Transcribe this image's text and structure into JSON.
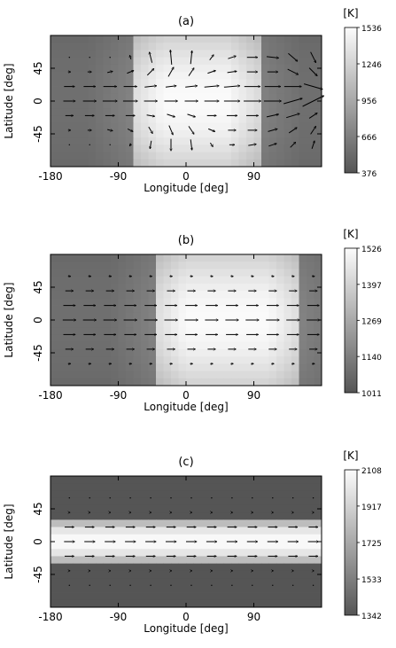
{
  "chart_data": [
    {
      "type": "heatmap",
      "panel_label": "(a)",
      "xlabel": "Longitude [deg]",
      "ylabel": "Latitude [deg]",
      "xlim": [
        -180,
        180
      ],
      "ylim": [
        -90,
        90
      ],
      "x_ticks": [
        -180,
        -90,
        0,
        90
      ],
      "y_ticks": [
        45,
        0,
        -45
      ],
      "colorbar_unit": "[K]",
      "colorbar_ticks": [
        1536,
        1246,
        956,
        666,
        376
      ],
      "colorbar_range": [
        376,
        1536
      ],
      "temperature_field": {
        "day_side_lon": [
          -70,
          95
        ],
        "night_side_lon": [
          [
            -180,
            -70
          ],
          [
            95,
            180
          ]
        ]
      },
      "wind_vectors": {
        "lat": [
          60,
          40,
          20,
          0,
          -20,
          -40,
          -60
        ],
        "lon": [
          -155,
          -128,
          -101,
          -74,
          -47,
          -20,
          7,
          34,
          61,
          88,
          115,
          142,
          169
        ],
        "u": [
          [
            0,
            0,
            0,
            -0.05,
            -0.1,
            -0.05,
            0.05,
            0.15,
            0.3,
            0.4,
            0.45,
            0.35,
            0.2
          ],
          [
            0.1,
            0.15,
            0.2,
            0.25,
            0.25,
            0.2,
            0.2,
            0.3,
            0.35,
            0.4,
            0.4,
            0.4,
            0.3
          ],
          [
            0.4,
            0.45,
            0.5,
            0.5,
            0.45,
            0.4,
            0.45,
            0.55,
            0.6,
            0.6,
            0.6,
            0.65,
            0.7
          ],
          [
            0.45,
            0.5,
            0.55,
            0.55,
            0.5,
            0.5,
            0.5,
            0.55,
            0.6,
            0.65,
            0.65,
            0.7,
            0.8
          ],
          [
            0.3,
            0.35,
            0.35,
            0.35,
            0.3,
            0.3,
            0.3,
            0.35,
            0.4,
            0.45,
            0.45,
            0.5,
            0.3
          ],
          [
            0.1,
            0.15,
            0.2,
            0.2,
            0.15,
            0.15,
            0.2,
            0.25,
            0.3,
            0.35,
            0.35,
            0.3,
            0.2
          ],
          [
            0,
            0,
            0,
            -0.05,
            -0.05,
            0,
            0.05,
            0.1,
            0.2,
            0.3,
            0.3,
            0.2,
            0.1
          ]
        ],
        "v": [
          [
            0,
            0,
            0,
            0.15,
            0.4,
            0.55,
            0.5,
            0.2,
            0.1,
            0,
            -0.05,
            -0.3,
            -0.4
          ],
          [
            0,
            0,
            0.05,
            0.1,
            0.25,
            0.35,
            0.3,
            0.1,
            0.05,
            0,
            0,
            -0.2,
            -0.3
          ],
          [
            0,
            0,
            0,
            0,
            0.05,
            0.05,
            0.05,
            0.05,
            0.05,
            0,
            0,
            0,
            -0.2
          ],
          [
            0,
            0,
            0,
            0,
            0,
            0,
            0,
            0,
            0,
            0,
            0,
            0.2,
            0.4
          ],
          [
            0,
            0,
            0,
            0,
            -0.05,
            -0.1,
            -0.1,
            0,
            0,
            0,
            0.1,
            0.15,
            0.2
          ],
          [
            0,
            0,
            -0.05,
            -0.1,
            -0.25,
            -0.35,
            -0.3,
            -0.1,
            0,
            0,
            0.1,
            0.2,
            0.3
          ],
          [
            0,
            0,
            0,
            -0.1,
            -0.3,
            -0.45,
            -0.4,
            -0.15,
            0,
            0.05,
            0.1,
            0.2,
            0.3
          ]
        ]
      }
    },
    {
      "type": "heatmap",
      "panel_label": "(b)",
      "xlabel": "Longitude [deg]",
      "ylabel": "Latitude [deg]",
      "xlim": [
        -180,
        180
      ],
      "ylim": [
        -90,
        90
      ],
      "x_ticks": [
        -180,
        -90,
        0,
        90
      ],
      "y_ticks": [
        45,
        0,
        -45
      ],
      "colorbar_unit": "[K]",
      "colorbar_ticks": [
        1526,
        1397,
        1269,
        1140,
        1011
      ],
      "colorbar_range": [
        1011,
        1526
      ],
      "temperature_field": {
        "day_side_lon": [
          -40,
          150
        ],
        "night_side_lon": [
          [
            -180,
            -40
          ],
          [
            150,
            180
          ]
        ]
      },
      "wind_vectors": {
        "lat": [
          60,
          40,
          20,
          0,
          -20,
          -40,
          -60
        ],
        "lon": [
          -155,
          -128,
          -101,
          -74,
          -47,
          -20,
          7,
          34,
          61,
          88,
          115,
          142,
          169
        ],
        "u": [
          [
            0.1,
            0.1,
            0.1,
            0.1,
            0.1,
            0.1,
            0.1,
            0.1,
            0.1,
            0.1,
            0.1,
            0.1,
            0.1
          ],
          [
            0.3,
            0.3,
            0.3,
            0.3,
            0.3,
            0.3,
            0.3,
            0.3,
            0.3,
            0.3,
            0.3,
            0.3,
            0.3
          ],
          [
            0.45,
            0.45,
            0.45,
            0.45,
            0.45,
            0.45,
            0.45,
            0.45,
            0.45,
            0.45,
            0.45,
            0.45,
            0.45
          ],
          [
            0.5,
            0.5,
            0.5,
            0.5,
            0.5,
            0.5,
            0.5,
            0.5,
            0.5,
            0.5,
            0.5,
            0.5,
            0.5
          ],
          [
            0.45,
            0.45,
            0.45,
            0.45,
            0.45,
            0.45,
            0.45,
            0.45,
            0.45,
            0.45,
            0.45,
            0.45,
            0.45
          ],
          [
            0.3,
            0.3,
            0.3,
            0.3,
            0.3,
            0.3,
            0.3,
            0.3,
            0.3,
            0.3,
            0.3,
            0.3,
            0.3
          ],
          [
            0.1,
            0.1,
            0.1,
            0.1,
            0.1,
            0.1,
            0.1,
            0.1,
            0.1,
            0.1,
            0.1,
            0.1,
            0.1
          ]
        ],
        "v": [
          [
            0,
            0,
            0,
            0,
            0,
            0,
            0,
            0,
            0,
            0,
            0,
            0,
            0
          ],
          [
            0,
            0,
            0,
            0,
            0,
            0,
            0,
            0,
            0,
            0,
            0,
            0,
            0
          ],
          [
            0,
            0,
            0,
            0,
            0,
            0,
            0,
            0,
            0,
            0,
            0,
            0,
            0
          ],
          [
            0,
            0,
            0,
            0,
            0,
            0,
            0,
            0,
            0,
            0,
            0,
            0,
            0
          ],
          [
            0,
            0,
            0,
            0,
            0,
            0,
            0,
            0,
            0,
            0,
            0,
            0,
            0
          ],
          [
            0,
            0,
            0,
            0,
            0,
            0,
            0,
            0,
            0,
            0,
            0,
            0,
            0
          ],
          [
            0,
            0,
            0,
            0,
            0,
            0,
            0,
            0,
            0,
            0,
            0,
            0,
            0
          ]
        ]
      }
    },
    {
      "type": "heatmap",
      "panel_label": "(c)",
      "xlabel": "Longitude [deg]",
      "ylabel": "Latitude [deg]",
      "xlim": [
        -180,
        180
      ],
      "ylim": [
        -90,
        90
      ],
      "x_ticks": [
        -180,
        -90,
        0,
        90
      ],
      "y_ticks": [
        45,
        0,
        -45
      ],
      "colorbar_unit": "[K]",
      "colorbar_ticks": [
        2108,
        1917,
        1725,
        1533,
        1342
      ],
      "colorbar_range": [
        1342,
        2108
      ],
      "temperature_field": {
        "equatorial_band_lat": [
          -30,
          30
        ]
      },
      "wind_vectors": {
        "lat": [
          60,
          40,
          20,
          0,
          -20,
          -40,
          -60
        ],
        "lon": [
          -155,
          -128,
          -101,
          -74,
          -47,
          -20,
          7,
          34,
          61,
          88,
          115,
          142,
          169
        ],
        "u": [
          [
            0,
            0,
            0,
            0,
            0,
            0,
            0,
            0,
            0,
            0,
            0,
            0,
            0
          ],
          [
            0.05,
            0.05,
            0.05,
            0.05,
            0.05,
            0.05,
            0.05,
            0.05,
            0.05,
            0.05,
            0.05,
            0.05,
            0.05
          ],
          [
            0.35,
            0.35,
            0.35,
            0.35,
            0.35,
            0.35,
            0.35,
            0.35,
            0.35,
            0.35,
            0.35,
            0.35,
            0.35
          ],
          [
            0.4,
            0.4,
            0.4,
            0.4,
            0.4,
            0.4,
            0.4,
            0.4,
            0.4,
            0.4,
            0.4,
            0.4,
            0.4
          ],
          [
            0.35,
            0.35,
            0.35,
            0.35,
            0.35,
            0.35,
            0.35,
            0.35,
            0.35,
            0.35,
            0.35,
            0.35,
            0.35
          ],
          [
            0.05,
            0.05,
            0.05,
            0.05,
            0.05,
            0.05,
            0.05,
            0.05,
            0.05,
            0.05,
            0.05,
            0.05,
            0.05
          ],
          [
            0,
            0,
            0,
            0,
            0,
            0,
            0,
            0,
            0,
            0,
            0,
            0,
            0
          ]
        ],
        "v": [
          [
            0,
            0,
            0,
            0,
            0,
            0,
            0,
            0,
            0,
            0,
            0,
            0,
            0
          ],
          [
            0,
            0,
            0,
            0,
            0,
            0,
            0,
            0,
            0,
            0,
            0,
            0,
            0
          ],
          [
            0,
            0,
            0,
            0,
            0,
            0,
            0,
            0,
            0,
            0,
            0,
            0,
            0
          ],
          [
            0,
            0,
            0,
            0,
            0,
            0,
            0,
            0,
            0,
            0,
            0,
            0,
            0
          ],
          [
            0,
            0,
            0,
            0,
            0,
            0,
            0,
            0,
            0,
            0,
            0,
            0,
            0
          ],
          [
            0,
            0,
            0,
            0,
            0,
            0,
            0,
            0,
            0,
            0,
            0,
            0,
            0
          ],
          [
            0,
            0,
            0,
            0,
            0,
            0,
            0,
            0,
            0,
            0,
            0,
            0,
            0
          ]
        ]
      }
    }
  ]
}
